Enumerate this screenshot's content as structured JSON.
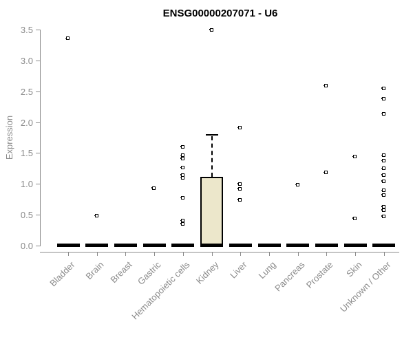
{
  "chart_data": {
    "type": "boxplot",
    "title": "ENSG00000207071 - U6",
    "ylabel": "Expression",
    "xlabel": "",
    "ylim": [
      0.0,
      3.5
    ],
    "yticks": [
      0.0,
      0.5,
      1.0,
      1.5,
      2.0,
      2.5,
      3.0,
      3.5
    ],
    "grid": false,
    "legend": null,
    "categories": [
      "Bladder",
      "Brain",
      "Breast",
      "Gastric",
      "Hematopoietic cells",
      "Kidney",
      "Liver",
      "Lung",
      "Pancreas",
      "Prostate",
      "Skin",
      "Unknown / Other"
    ],
    "series": [
      {
        "category": "Bladder",
        "box": {
          "q1": 0,
          "median": 0,
          "q3": 0,
          "whisker_low": 0,
          "whisker_high": 0
        },
        "points": [
          3.36
        ]
      },
      {
        "category": "Brain",
        "box": {
          "q1": 0,
          "median": 0,
          "q3": 0,
          "whisker_low": 0,
          "whisker_high": 0
        },
        "points": [
          0.48
        ]
      },
      {
        "category": "Breast",
        "box": {
          "q1": 0,
          "median": 0,
          "q3": 0,
          "whisker_low": 0,
          "whisker_high": 0
        },
        "points": []
      },
      {
        "category": "Gastric",
        "box": {
          "q1": 0,
          "median": 0,
          "q3": 0,
          "whisker_low": 0,
          "whisker_high": 0
        },
        "points": [
          0.93
        ]
      },
      {
        "category": "Hematopoietic cells",
        "box": {
          "q1": 0,
          "median": 0,
          "q3": 0,
          "whisker_low": 0,
          "whisker_high": 0
        },
        "points": [
          1.6,
          1.46,
          1.41,
          1.26,
          1.14,
          1.09,
          0.77,
          0.4,
          0.35
        ]
      },
      {
        "category": "Kidney",
        "box": {
          "q1": 0,
          "median": 0,
          "q3": 1.11,
          "whisker_low": 0,
          "whisker_high": 1.79
        },
        "points": [
          3.5
        ]
      },
      {
        "category": "Liver",
        "box": {
          "q1": 0,
          "median": 0,
          "q3": 0,
          "whisker_low": 0,
          "whisker_high": 0
        },
        "points": [
          1.91,
          1.0,
          0.92,
          0.74
        ]
      },
      {
        "category": "Lung",
        "box": {
          "q1": 0,
          "median": 0,
          "q3": 0,
          "whisker_low": 0,
          "whisker_high": 0
        },
        "points": []
      },
      {
        "category": "Pancreas",
        "box": {
          "q1": 0,
          "median": 0,
          "q3": 0,
          "whisker_low": 0,
          "whisker_high": 0
        },
        "points": [
          0.98
        ]
      },
      {
        "category": "Prostate",
        "box": {
          "q1": 0,
          "median": 0,
          "q3": 0,
          "whisker_low": 0,
          "whisker_high": 0
        },
        "points": [
          2.59,
          1.18
        ]
      },
      {
        "category": "Skin",
        "box": {
          "q1": 0,
          "median": 0,
          "q3": 0,
          "whisker_low": 0,
          "whisker_high": 0
        },
        "points": [
          1.44,
          0.44
        ]
      },
      {
        "category": "Unknown / Other",
        "box": {
          "q1": 0,
          "median": 0,
          "q3": 0,
          "whisker_low": 0,
          "whisker_high": 0
        },
        "points": [
          2.55,
          2.38,
          2.13,
          1.46,
          1.37,
          1.25,
          1.14,
          1.04,
          0.89,
          0.82,
          0.63,
          0.57,
          0.47
        ]
      }
    ],
    "colors": {
      "box_fill": "#ece7cb",
      "box_border": "#000000",
      "point": "#000000",
      "axis": "#8a8a8a",
      "title": "#000000",
      "background": "#ffffff"
    }
  }
}
